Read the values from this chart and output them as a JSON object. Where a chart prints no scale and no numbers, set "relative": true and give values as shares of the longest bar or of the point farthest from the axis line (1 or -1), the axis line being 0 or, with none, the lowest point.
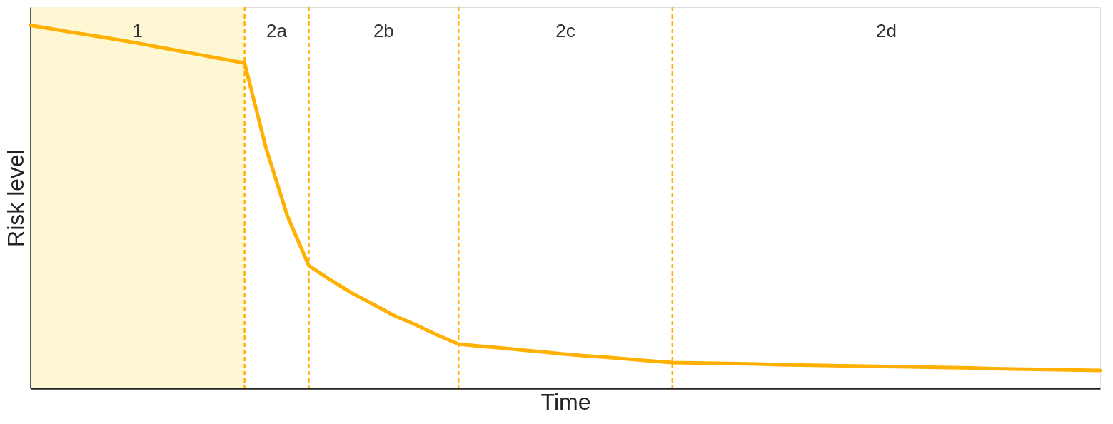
{
  "chart_data": {
    "type": "line",
    "relative": true,
    "xlabel": "Time",
    "ylabel": "Risk level",
    "categories": [
      null,
      null,
      null,
      null,
      null,
      null,
      null,
      null,
      null,
      null,
      null,
      null,
      null,
      null,
      null,
      null,
      null,
      null,
      null,
      null,
      null,
      null,
      null,
      null,
      null,
      null,
      null,
      null,
      null,
      null,
      null,
      null,
      null,
      null,
      null,
      null,
      null,
      null,
      null,
      null,
      null,
      null,
      null,
      null,
      null,
      null,
      null,
      null,
      null,
      null,
      null
    ],
    "line_style": "solid",
    "grid": "x",
    "series": [
      {
        "color": "#ffb000",
        "values": [
          1.0,
          0.99,
          0.98,
          0.971,
          0.961,
          0.951,
          0.94,
          0.929,
          0.918,
          0.907,
          0.896,
          0.662,
          0.475,
          0.338,
          0.299,
          0.263,
          0.232,
          0.2,
          0.175,
          0.147,
          0.122,
          0.116,
          0.111,
          0.105,
          0.1,
          0.094,
          0.089,
          0.085,
          0.08,
          0.075,
          0.071,
          0.07,
          0.069,
          0.068,
          0.067,
          0.065,
          0.064,
          0.063,
          0.062,
          0.061,
          0.06,
          0.059,
          0.058,
          0.057,
          0.056,
          0.054,
          0.053,
          0.052,
          0.051,
          0.05,
          0.049
        ]
      }
    ],
    "annotations": [
      "1",
      "2a",
      "2b",
      "2c",
      "2d"
    ]
  }
}
